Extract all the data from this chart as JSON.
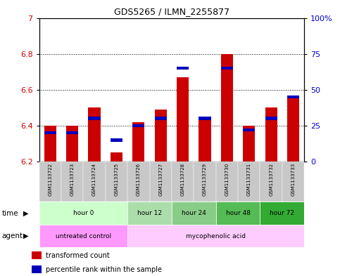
{
  "title": "GDS5265 / ILMN_2255877",
  "samples": [
    "GSM1133722",
    "GSM1133723",
    "GSM1133724",
    "GSM1133725",
    "GSM1133726",
    "GSM1133727",
    "GSM1133728",
    "GSM1133729",
    "GSM1133730",
    "GSM1133731",
    "GSM1133732",
    "GSM1133733"
  ],
  "red_values": [
    6.4,
    6.4,
    6.5,
    6.25,
    6.42,
    6.49,
    6.67,
    6.45,
    6.8,
    6.4,
    6.5,
    6.55
  ],
  "blue_values_pct": [
    20,
    20,
    30,
    15,
    25,
    30,
    65,
    30,
    65,
    22,
    30,
    45
  ],
  "ymin": 6.2,
  "ymax": 7.0,
  "yticks": [
    6.2,
    6.4,
    6.6,
    6.8,
    7.0
  ],
  "ytick_labels": [
    "6.2",
    "6.4",
    "6.6",
    "6.8",
    "7"
  ],
  "right_yticks": [
    0,
    25,
    50,
    75,
    100
  ],
  "right_ylabels": [
    "0",
    "25",
    "50",
    "75",
    "100%"
  ],
  "bar_bottom": 6.2,
  "time_groups": [
    {
      "label": "hour 0",
      "start": 0,
      "end": 4,
      "color": "#ccffcc"
    },
    {
      "label": "hour 12",
      "start": 4,
      "end": 6,
      "color": "#aaddaa"
    },
    {
      "label": "hour 24",
      "start": 6,
      "end": 8,
      "color": "#88cc88"
    },
    {
      "label": "hour 48",
      "start": 8,
      "end": 10,
      "color": "#55bb55"
    },
    {
      "label": "hour 72",
      "start": 10,
      "end": 12,
      "color": "#33aa33"
    }
  ],
  "agent_groups": [
    {
      "label": "untreated control",
      "start": 0,
      "end": 4,
      "color": "#ff99ff"
    },
    {
      "label": "mycophenolic acid",
      "start": 4,
      "end": 12,
      "color": "#ffccff"
    }
  ],
  "red_color": "#cc0000",
  "blue_color": "#0000bb",
  "bar_width": 0.55,
  "grid_color": "black",
  "left_label_color": "#cc0000",
  "right_label_color": "#0000cc",
  "sample_bg_color": "#c8c8c8",
  "legend_items": [
    {
      "label": "transformed count",
      "color": "#cc0000"
    },
    {
      "label": "percentile rank within the sample",
      "color": "#0000bb"
    }
  ]
}
